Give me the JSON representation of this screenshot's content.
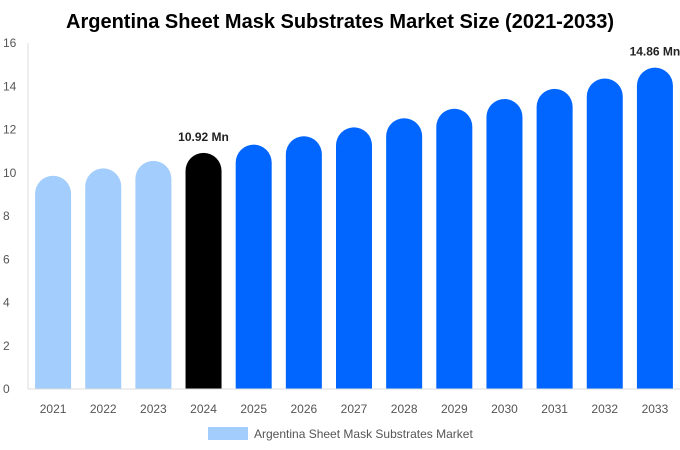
{
  "chart_data": {
    "type": "bar",
    "title": "Argentina Sheet Mask Substrates Market Size (2021-2033)",
    "categories": [
      "2021",
      "2022",
      "2023",
      "2024",
      "2025",
      "2026",
      "2027",
      "2028",
      "2029",
      "2030",
      "2031",
      "2032",
      "2033"
    ],
    "series": [
      {
        "name": "Argentina Sheet Mask Substrates Market",
        "values": [
          9.86,
          10.2,
          10.55,
          10.92,
          11.3,
          11.69,
          12.1,
          12.52,
          12.96,
          13.41,
          13.88,
          14.36,
          14.86
        ]
      }
    ],
    "bar_colors": [
      "#a3cdfd",
      "#a3cdfd",
      "#a3cdfd",
      "#000000",
      "#0066ff",
      "#0066ff",
      "#0066ff",
      "#0066ff",
      "#0066ff",
      "#0066ff",
      "#0066ff",
      "#0066ff",
      "#0066ff"
    ],
    "data_labels": {
      "3": "10.92 Mn",
      "12": "14.86 Mn"
    },
    "ylim": [
      0,
      16
    ],
    "yticks": [
      0,
      2,
      4,
      6,
      8,
      10,
      12,
      14,
      16
    ],
    "xlabel": "",
    "ylabel": "",
    "grid": false,
    "legend_position": "bottom",
    "legend_color": "#a3cdfd"
  }
}
